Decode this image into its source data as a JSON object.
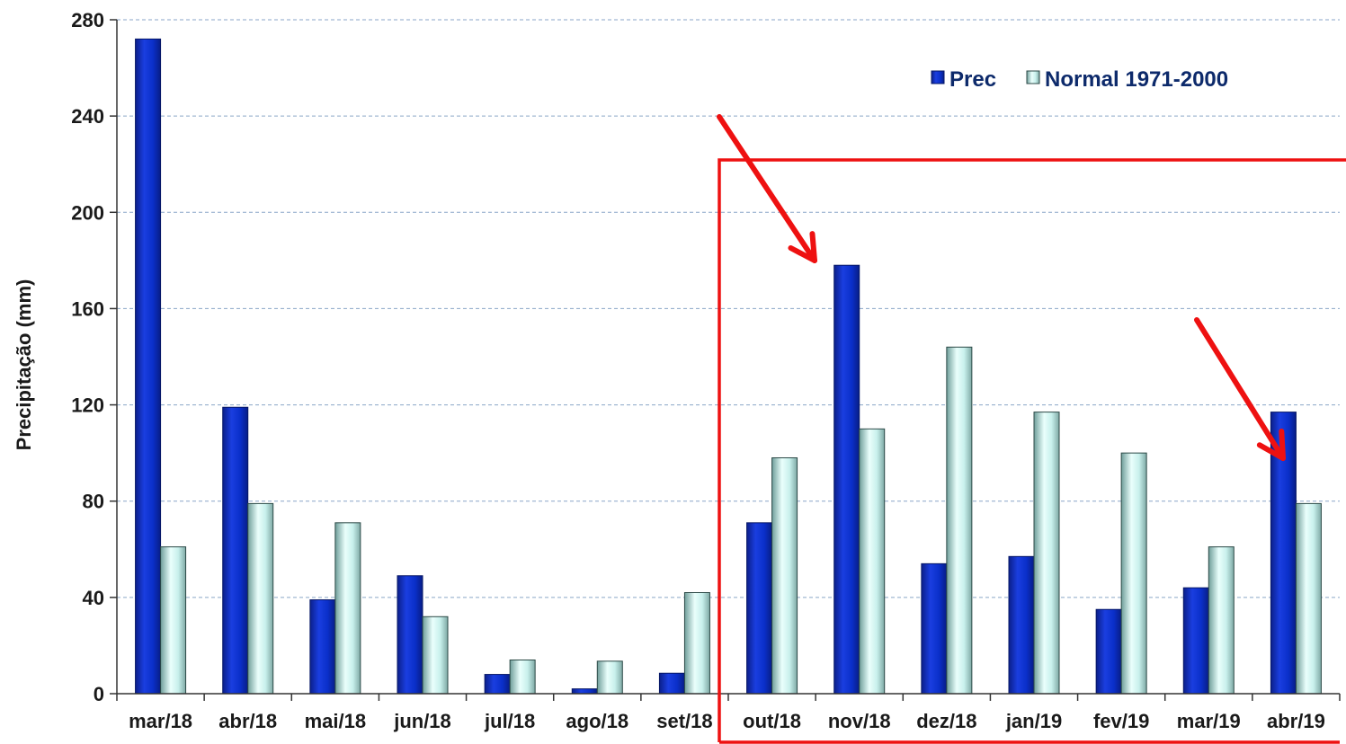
{
  "chart_data": {
    "type": "bar",
    "ylabel": "Precipitação (mm)",
    "xlabel": "",
    "ylim": [
      0,
      280
    ],
    "yticks": [
      0,
      40,
      80,
      120,
      160,
      200,
      240,
      280
    ],
    "grid": true,
    "legend_position": "top-right",
    "categories": [
      "mar/18",
      "abr/18",
      "mai/18",
      "jun/18",
      "jul/18",
      "ago/18",
      "set/18",
      "out/18",
      "nov/18",
      "dez/18",
      "jan/19",
      "fev/19",
      "mar/19",
      "abr/19"
    ],
    "series": [
      {
        "name": "Prec",
        "color": "#0a2fc9",
        "values": [
          272,
          119,
          39,
          49,
          8,
          2,
          8.5,
          71,
          178,
          54,
          57,
          35,
          44,
          117
        ]
      },
      {
        "name": "Normal 1971-2000",
        "color": "#c8f0ec",
        "values": [
          61,
          79,
          71,
          32,
          14,
          13.5,
          42,
          98,
          110,
          144,
          117,
          100,
          61,
          79
        ]
      }
    ],
    "annotations": {
      "highlight_box_color": "#ee1111",
      "arrow_color": "#ee1111",
      "highlight_start_category": "out/18",
      "arrow_targets": [
        "nov/18",
        "abr/19"
      ]
    }
  }
}
